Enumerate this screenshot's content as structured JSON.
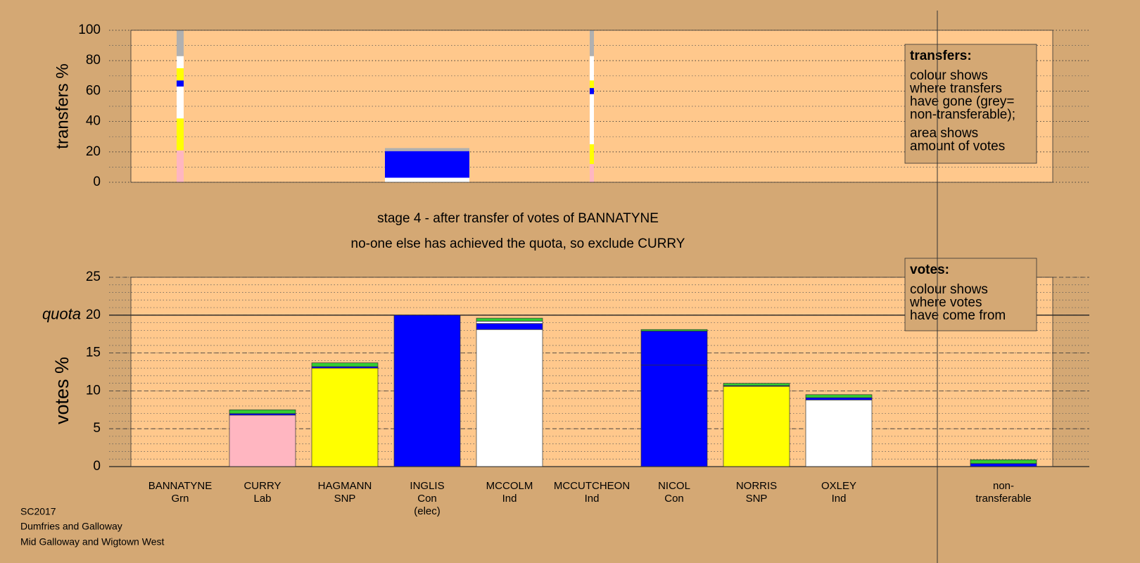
{
  "stage_title": "stage 4 - after transfer of votes of BANNATYNE",
  "stage_note": "no-one else has achieved the quota, so exclude CURRY",
  "footer": [
    "SC2017",
    "Dumfries and Galloway",
    "Mid Galloway and Wigtown West"
  ],
  "chart_data": [
    {
      "type": "transfers",
      "ylabel": "transfers %",
      "ylim": [
        0,
        100
      ],
      "yticks": [
        0,
        20,
        40,
        60,
        80,
        100
      ],
      "minor_step": 10,
      "legend": {
        "title": "transfers:",
        "paragraphs": [
          [
            "colour shows",
            "where transfers",
            "have gone (grey=",
            "non-transferable);"
          ],
          [
            "area shows",
            "amount of votes"
          ]
        ]
      },
      "columns": [
        {
          "candidate": "BANNATYNE",
          "votes": 0.5,
          "segments": [
            {
              "value": 21,
              "color": "#ffb6c1"
            },
            {
              "value": 21,
              "color": "#ffff00"
            },
            {
              "value": 21,
              "color": "#ffffff"
            },
            {
              "value": 4,
              "color": "#0000ff"
            },
            {
              "value": 8,
              "color": "#ffff00"
            },
            {
              "value": 8,
              "color": "#ffffff"
            },
            {
              "value": 17,
              "color": "#b0b0b0"
            }
          ]
        },
        {
          "candidate": "INGLIS",
          "votes": 6,
          "segments": [
            {
              "value": 3,
              "color": "#ffffff"
            },
            {
              "value": 17.5,
              "color": "#0000ff"
            },
            {
              "value": 2,
              "color": "#b0b0b0"
            }
          ]
        },
        {
          "candidate": "MCCUTCHEON",
          "votes": 0.3,
          "segments": [
            {
              "value": 12,
              "color": "#ffb6c1"
            },
            {
              "value": 13,
              "color": "#ffff00"
            },
            {
              "value": 33,
              "color": "#ffffff"
            },
            {
              "value": 4,
              "color": "#0000ff"
            },
            {
              "value": 5,
              "color": "#ffff00"
            },
            {
              "value": 16,
              "color": "#ffffff"
            },
            {
              "value": 17,
              "color": "#b0b0b0"
            }
          ]
        }
      ]
    },
    {
      "type": "votes",
      "ylabel": "votes %",
      "ylim": [
        0,
        25
      ],
      "yticks": [
        0,
        5,
        10,
        15,
        20,
        25
      ],
      "minor_step": 1,
      "quota": 20,
      "quota_label": "quota",
      "legend": {
        "title": "votes:",
        "paragraphs": [
          [
            "colour shows",
            "where votes",
            "have come from"
          ]
        ]
      },
      "categories": [
        [
          "BANNATYNE",
          "Grn"
        ],
        [
          "CURRY",
          "Lab"
        ],
        [
          "HAGMANN",
          "SNP"
        ],
        [
          "INGLIS",
          "Con",
          "(elec)"
        ],
        [
          "MCCOLM",
          "Ind"
        ],
        [
          "MCCUTCHEON",
          "Ind"
        ],
        [
          "NICOL",
          "Con"
        ],
        [
          "NORRIS",
          "SNP"
        ],
        [
          "OXLEY",
          "Ind"
        ],
        [
          "non-",
          "transferable"
        ]
      ],
      "bars": [
        {
          "segments": [
            {
              "value": 0,
              "color": "#33cc33"
            }
          ]
        },
        {
          "segments": [
            {
              "value": 6.8,
              "color": "#ffb6c1"
            },
            {
              "value": 0.2,
              "color": "#0000ff"
            },
            {
              "value": 0.5,
              "color": "#33cc33"
            }
          ]
        },
        {
          "segments": [
            {
              "value": 13,
              "color": "#ffff00"
            },
            {
              "value": 0.2,
              "color": "#0000ff"
            },
            {
              "value": 0.5,
              "color": "#33cc33"
            }
          ]
        },
        {
          "segments": [
            {
              "value": 20,
              "color": "#0000ff"
            }
          ]
        },
        {
          "segments": [
            {
              "value": 18.1,
              "color": "#ffffff"
            },
            {
              "value": 0.8,
              "color": "#0000ff"
            },
            {
              "value": 0.3,
              "color": "#ffffff"
            },
            {
              "value": 0.4,
              "color": "#33cc33"
            }
          ]
        },
        {
          "segments": [
            {
              "value": 0,
              "color": "#33cc33"
            }
          ]
        },
        {
          "segments": [
            {
              "value": 13.4,
              "color": "#0000ff"
            },
            {
              "value": 4.5,
              "color": "#0000ff"
            },
            {
              "value": 0.2,
              "color": "#33cc33"
            }
          ]
        },
        {
          "segments": [
            {
              "value": 10.6,
              "color": "#ffff00"
            },
            {
              "value": 0.1,
              "color": "#0000ff"
            },
            {
              "value": 0.3,
              "color": "#33cc33"
            }
          ]
        },
        {
          "segments": [
            {
              "value": 8.8,
              "color": "#ffffff"
            },
            {
              "value": 0.3,
              "color": "#0000ff"
            },
            {
              "value": 0.4,
              "color": "#33cc33"
            }
          ]
        },
        {
          "segments": [
            {
              "value": 0.4,
              "color": "#0000ff"
            },
            {
              "value": 0.5,
              "color": "#33cc33"
            }
          ]
        }
      ]
    }
  ]
}
